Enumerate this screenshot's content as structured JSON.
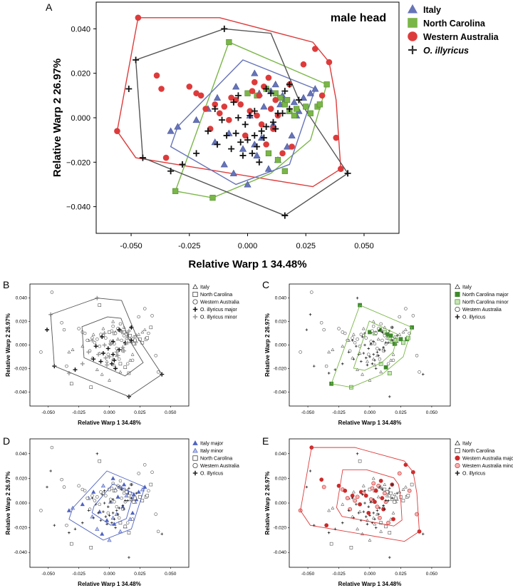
{
  "chart_data": [
    {
      "panel": "A",
      "type": "scatter",
      "title": "male head",
      "xlabel": "Relative Warp 1   34.48%",
      "ylabel": "Relative Warp 2   26.97%",
      "xlim": [
        -0.065,
        0.065
      ],
      "ylim": [
        -0.052,
        0.052
      ],
      "xticks": [
        "-0.050",
        "-0.025",
        "0.000",
        "0.025",
        "0.050"
      ],
      "yticks": [
        "0.040",
        "0.020",
        "0.000",
        "−0.020",
        "−0.040"
      ],
      "legend_position": "right",
      "series": [
        {
          "name": "Italy",
          "marker": "triangle",
          "color": "#6674b8",
          "x": [
            -0.033,
            -0.03,
            -0.022,
            -0.017,
            -0.013,
            -0.005,
            0.003,
            0.005,
            0.007,
            0.01,
            0.012,
            0.015,
            0.016,
            0.018,
            0.02,
            0.021,
            0.024,
            0.027,
            0.029,
            -0.01,
            -0.006,
            0.0,
            0.004,
            0.009,
            0.013,
            0.017,
            0.019,
            -0.014,
            -0.002,
            0.006,
            0.011,
            0.001,
            -0.008,
            0.014,
            0.022,
            0.003
          ],
          "y": [
            -0.006,
            -0.004,
            -0.001,
            0.004,
            0.009,
            0.014,
            0.02,
            0.011,
            0.005,
            0.012,
            0.015,
            0.01,
            0.008,
            0.003,
            0.007,
            0.001,
            0.009,
            0.011,
            0.013,
            -0.021,
            -0.025,
            -0.03,
            -0.017,
            -0.023,
            -0.019,
            -0.013,
            -0.008,
            -0.011,
            -0.014,
            -0.009,
            -0.003,
            0.001,
            -0.007,
            0.006,
            0.003,
            -0.012
          ]
        },
        {
          "name": "North Carolina",
          "marker": "square",
          "color": "#7ab648",
          "x": [
            0.0,
            0.004,
            0.008,
            0.012,
            0.014,
            0.016,
            0.017,
            0.018,
            0.02,
            0.021,
            0.025,
            0.027,
            0.03,
            0.031,
            0.034,
            0.009,
            0.013,
            0.016,
            -0.008,
            -0.015,
            -0.031
          ],
          "y": [
            0.011,
            0.01,
            0.013,
            0.011,
            0.009,
            0.006,
            0.008,
            0.003,
            0.001,
            0.004,
            0.005,
            0.002,
            0.005,
            0.006,
            0.015,
            -0.016,
            -0.019,
            -0.024,
            0.034,
            -0.036,
            -0.033
          ]
        },
        {
          "name": "Western Australia",
          "marker": "circle",
          "color": "#dd3b3b",
          "x": [
            -0.047,
            -0.056,
            -0.039,
            -0.037,
            -0.035,
            -0.022,
            -0.02,
            -0.018,
            -0.014,
            -0.01,
            -0.007,
            -0.005,
            -0.003,
            0.002,
            0.005,
            0.007,
            0.01,
            0.012,
            0.018,
            0.024,
            0.029,
            0.032,
            0.035,
            0.038,
            0.04,
            -0.012,
            -0.008,
            0.001,
            0.004,
            0.006,
            0.011,
            -0.016,
            -0.001,
            0.015,
            0.019,
            0.008,
            -0.025,
            0.003,
            0.009,
            0.013
          ],
          "y": [
            0.045,
            -0.006,
            0.019,
            0.013,
            -0.018,
            0.011,
            0.01,
            0.004,
            0.006,
            0.005,
            0.009,
            0.008,
            0.006,
            0.012,
            0.01,
            0.014,
            0.004,
            0.008,
            0.015,
            0.024,
            0.031,
            0.01,
            0.025,
            -0.009,
            -0.023,
            0.002,
            -0.001,
            0.003,
            0.001,
            -0.003,
            -0.005,
            -0.005,
            -0.008,
            -0.016,
            -0.013,
            -0.012,
            0.014,
            0.016,
            0.018,
            0.001
          ]
        },
        {
          "name": "O. illyricus",
          "marker": "plus",
          "color": "#111111",
          "x": [
            -0.051,
            -0.048,
            -0.045,
            -0.033,
            -0.028,
            -0.022,
            -0.013,
            -0.01,
            -0.006,
            -0.004,
            -0.001,
            0.001,
            0.003,
            0.006,
            0.008,
            0.011,
            0.013,
            0.016,
            0.018,
            0.01,
            0.008,
            0.015,
            0.018,
            0.022,
            0.043,
            -0.003,
            0.004,
            0.007,
            -0.007,
            -0.002,
            0.002,
            -0.009,
            -0.005,
            0.0,
            0.005,
            -0.014,
            -0.011,
            0.012,
            0.016,
            -0.004,
            0.003,
            -0.017
          ],
          "y": [
            0.013,
            0.026,
            -0.018,
            -0.024,
            -0.021,
            -0.016,
            -0.012,
            0.04,
            0.007,
            0.0,
            -0.003,
            0.001,
            -0.008,
            -0.006,
            -0.004,
            -0.002,
            0.002,
            0.012,
            0.015,
            0.011,
            0.013,
            0.002,
            0.004,
            0.008,
            -0.025,
            -0.011,
            -0.013,
            -0.009,
            -0.014,
            -0.017,
            -0.016,
            -0.008,
            -0.007,
            -0.01,
            -0.02,
            0.004,
            -0.001,
            -0.005,
            -0.044,
            0.01,
            0.003,
            -0.006
          ]
        }
      ],
      "hulls": [
        {
          "series": "Western Australia",
          "color": "#dd3b3b",
          "x": [
            -0.047,
            -0.012,
            0.028,
            0.035,
            0.038,
            0.04,
            0.028,
            -0.048,
            -0.056
          ],
          "y": [
            0.045,
            0.045,
            0.034,
            0.025,
            0.008,
            -0.023,
            -0.031,
            -0.018,
            -0.006
          ]
        },
        {
          "series": "North Carolina",
          "color": "#7ab648",
          "x": [
            -0.008,
            0.034,
            0.027,
            0.01,
            -0.015,
            -0.031
          ],
          "y": [
            0.034,
            0.015,
            -0.01,
            -0.025,
            -0.036,
            -0.033
          ]
        },
        {
          "series": "Italy",
          "color": "#6674b8",
          "x": [
            -0.002,
            0.029,
            0.018,
            -0.005,
            -0.033,
            -0.03
          ],
          "y": [
            0.026,
            0.013,
            -0.021,
            -0.03,
            -0.013,
            -0.004
          ]
        },
        {
          "series": "O. illyricus",
          "color": "#555555",
          "x": [
            -0.01,
            0.01,
            0.022,
            0.043,
            0.016,
            -0.045,
            -0.048
          ],
          "y": [
            0.04,
            0.038,
            0.008,
            -0.025,
            -0.044,
            -0.018,
            0.026
          ]
        }
      ]
    },
    {
      "panel": "B",
      "type": "scatter",
      "xlabel": "Relative Warp 1   34.48%",
      "ylabel": "Relative Warp 2   26.97%",
      "xticks": [
        "-0.050",
        "-0.025",
        "0.000",
        "0.025",
        "0.050"
      ],
      "yticks": [
        "0.040",
        "0.020",
        "0.000",
        "-0.020",
        "-0.040"
      ],
      "legend": [
        "Italy",
        "North Carolina",
        "Western Australia",
        "O. illyricus major",
        "O. illyricus minor"
      ],
      "highlight": [
        "O. illyricus major",
        "O. illyricus minor"
      ],
      "hull_color": "#555555"
    },
    {
      "panel": "C",
      "type": "scatter",
      "xlabel": "Relative Warp 1   34.48%",
      "ylabel": "Relative Warp 2   26.97%",
      "xticks": [
        "-0.050",
        "-0.025",
        "0.000",
        "0.025",
        "0.050"
      ],
      "yticks": [
        "0.040",
        "0.020",
        "0.000",
        "-0.020",
        "-0.040"
      ],
      "legend": [
        "Italy",
        "North Carolina major",
        "North Carolina minor",
        "Western Australia",
        "O. illyricus"
      ],
      "highlight": [
        "North Carolina major",
        "North Carolina minor"
      ],
      "hull_color": "#7ab648"
    },
    {
      "panel": "D",
      "type": "scatter",
      "xlabel": "Relative Warp 1   34.48%",
      "ylabel": "Relative Warp 2   26.97%",
      "xticks": [
        "-0.050",
        "-0.025",
        "0.000",
        "0.025",
        "0.050"
      ],
      "yticks": [
        "0.040",
        "0.020",
        "0.000",
        "-0.020",
        "-0.040"
      ],
      "legend": [
        "Italy major",
        "Italy minor",
        "North Carolina",
        "Western Australia",
        "O. illyricus"
      ],
      "highlight": [
        "Italy major",
        "Italy minor"
      ],
      "hull_color": "#4f63c0"
    },
    {
      "panel": "E",
      "type": "scatter",
      "xlabel": "Relative Warp 1   34.48%",
      "ylabel": "Relative Warp 2   26.97%",
      "xticks": [
        "-0.050",
        "-0.025",
        "0.000",
        "0.025",
        "0.050"
      ],
      "yticks": [
        "0.040",
        "0.020",
        "0.000",
        "-0.020",
        "-0.040"
      ],
      "legend": [
        "Italy",
        "North Carolina",
        "Western Australia major",
        "Western Australia minor",
        "O. illyricus"
      ],
      "highlight": [
        "Western Australia major",
        "Western Australia minor"
      ],
      "hull_color": "#dd3b3b"
    }
  ]
}
